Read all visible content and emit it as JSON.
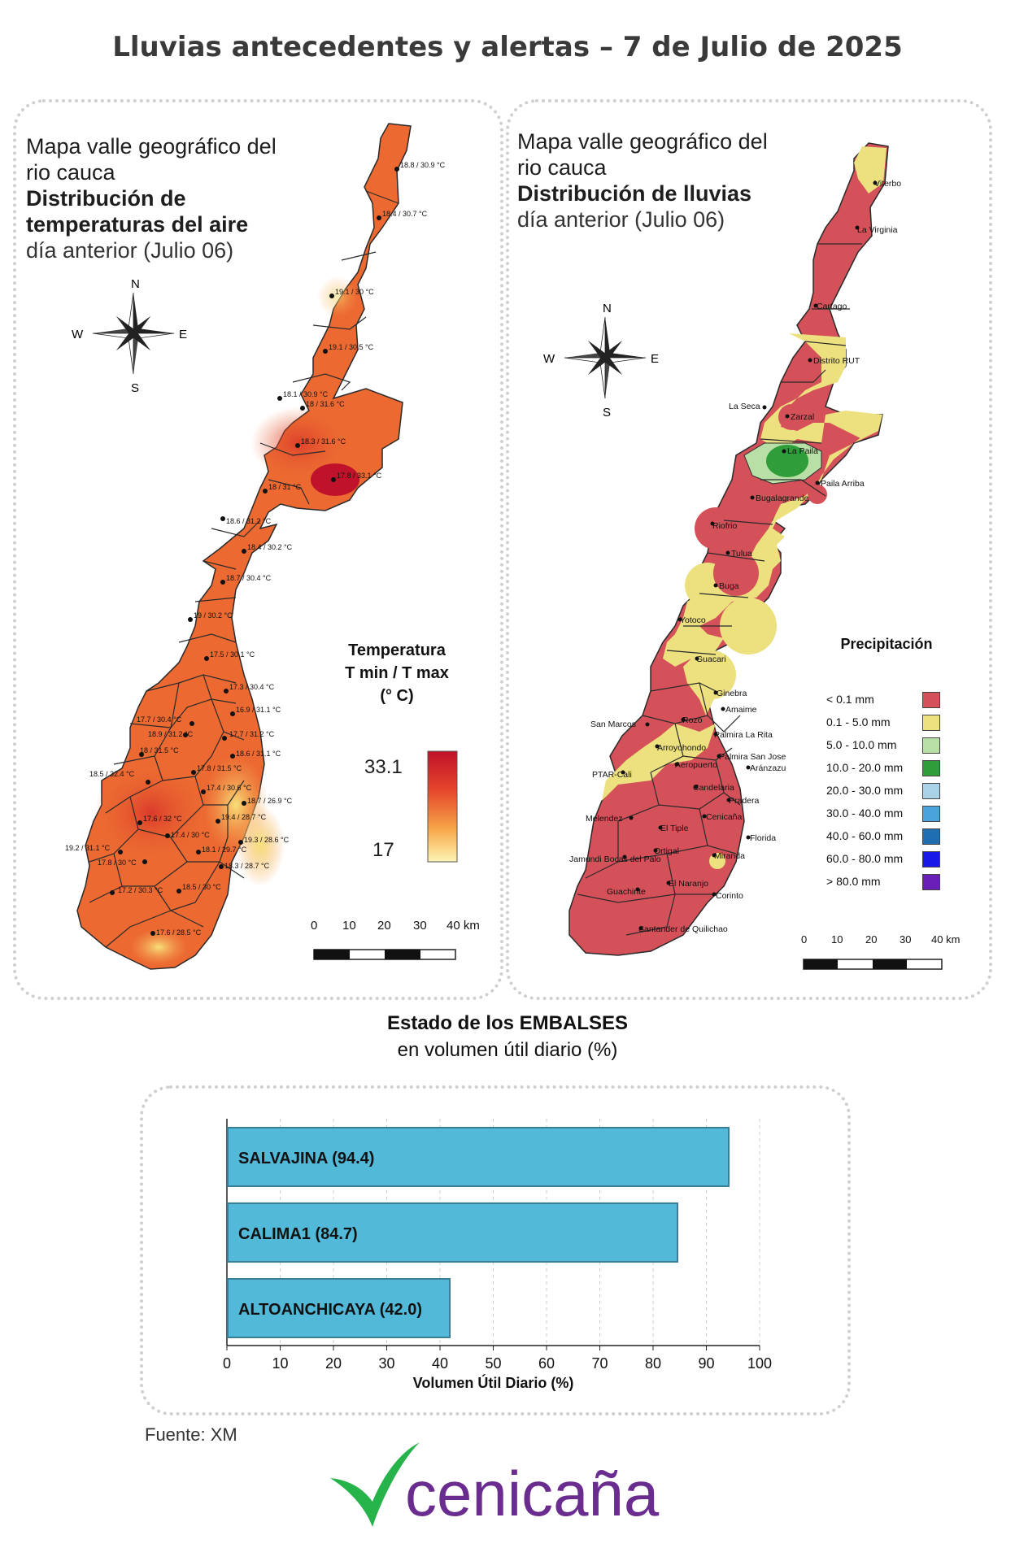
{
  "title": "Lluvias antecedentes y alertas – 7 de Julio de 2025",
  "temp_map": {
    "title_line1": "Mapa valle geográfico del",
    "title_line2": "rio cauca",
    "title_line3": "Distribución de",
    "title_line4": "temperaturas del aire",
    "subtitle": "día anterior (Julio 06)",
    "compass": {
      "n": "N",
      "s": "S",
      "e": "E",
      "w": "W"
    },
    "legend_title_1": "Temperatura",
    "legend_title_2": "T min / T max",
    "legend_title_3": "(° C)",
    "legend_max": "33.1",
    "legend_min": "17",
    "scale_labels": [
      "0",
      "10",
      "20",
      "30",
      "40 km"
    ],
    "stations": [
      "18.8 / 30.9 °C",
      "18.4 / 30.7 °C",
      "19.1 / 30 °C",
      "19.1 / 30.5 °C",
      "18.1 / 30.9 °C",
      "18 / 31.6 °C",
      "18.3 / 31.6 °C",
      "17.8 / 33.1 °C",
      "18 / 31 °C",
      "18.6 / 31.2 °C",
      "18.4 / 30.2 °C",
      "18.7 / 30.4 °C",
      "19 / 30.2 °C",
      "17.5 / 30.1 °C",
      "17.3 / 30.4 °C",
      "16.9 / 31.1 °C",
      "17.7 / 30.4 °C",
      "18.9 / 31.2 °C",
      "17.7 / 31.2 °C",
      "18 / 31.5 °C",
      "18.6 / 31.1 °C",
      "18.5 / 32.4 °C",
      "17.8 / 31.5 °C",
      "17.4 / 30.6 °C",
      "18.7 / 26.9 °C",
      "19.4 / 28.7 °C",
      "17.6 / 32 °C",
      "17.4 / 30 °C",
      "19.3 / 28.6 °C",
      "19.2 / 31.1 °C",
      "18.1 / 29.7 °C",
      "17.8 / 30 °C",
      "18.3 / 28.7 °C",
      "18.5 / 30 °C",
      "17.2 / 30.3 °C",
      "17.6 / 28.5 °C"
    ]
  },
  "rain_map": {
    "title_line1": "Mapa valle geográfico del",
    "title_line2": "rio cauca",
    "title_line3": "Distribución de lluvias",
    "subtitle": "día anterior (Julio 06)",
    "compass": {
      "n": "N",
      "s": "S",
      "e": "E",
      "w": "W"
    },
    "legend_title": "Precipitación",
    "legend": [
      {
        "label": "< 0.1 mm",
        "color": "#d5515a"
      },
      {
        "label": "0.1 - 5.0 mm",
        "color": "#ece07f"
      },
      {
        "label": "5.0 - 10.0 mm",
        "color": "#b8e0a6"
      },
      {
        "label": "10.0 - 20.0 mm",
        "color": "#2e9d3a"
      },
      {
        "label": "20.0 - 30.0 mm",
        "color": "#a9d2e6"
      },
      {
        "label": "30.0 - 40.0 mm",
        "color": "#4aa3dc"
      },
      {
        "label": "40.0 - 60.0 mm",
        "color": "#1f6eb1"
      },
      {
        "label": "60.0 - 80.0 mm",
        "color": "#1818e8"
      },
      {
        "label": "> 80.0 mm",
        "color": "#6a1eb8"
      }
    ],
    "scale_labels": [
      "0",
      "10",
      "20",
      "30",
      "40 km"
    ],
    "places": [
      "Viterbo",
      "La Virginia",
      "Cartago",
      "Distrito RUT",
      "La Seca",
      "Zarzal",
      "La Paila",
      "Paila Arriba",
      "Bugalagrande",
      "Riofrio",
      "Tulua",
      "Buga",
      "Yotoco",
      "Guacari",
      "Ginebra",
      "Amaime",
      "San Marcos",
      "Rozo",
      "Palmira La Rita",
      "Arroyohondo",
      "Palmira San Jose",
      "Aeropuerto",
      "Aránzazu",
      "PTAR-Cali",
      "Candelaria",
      "Pradera",
      "Cenicaña",
      "Melendez",
      "El Tiple",
      "Florida",
      "Ortigal",
      "Miranda",
      "Jamundi Bocas del Palo",
      "Guachinte",
      "El Naranjo",
      "Corinto",
      "Santander de Quilichao"
    ]
  },
  "reservoirs": {
    "title": "Estado de los EMBALSES",
    "subtitle": "en volumen útil diario (%)",
    "source": "Fuente: XM"
  },
  "chart_data": {
    "type": "bar",
    "orientation": "horizontal",
    "categories": [
      "SALVAJINA",
      "CALIMA1",
      "ALTOANCHICAYA"
    ],
    "values": [
      94.4,
      84.7,
      42.0
    ],
    "bar_labels": [
      "SALVAJINA (94.4)",
      "CALIMA1 (84.7)",
      "ALTOANCHICAYA (42.0)"
    ],
    "xlabel": "Volumen Útil Diario (%)",
    "xlim": [
      0,
      100
    ],
    "xticks": [
      "0",
      "10",
      "20",
      "30",
      "40",
      "50",
      "60",
      "70",
      "80",
      "90",
      "100"
    ],
    "grid": true,
    "bar_color": "#53b9d9"
  },
  "logo": {
    "text": "cenicaña"
  }
}
